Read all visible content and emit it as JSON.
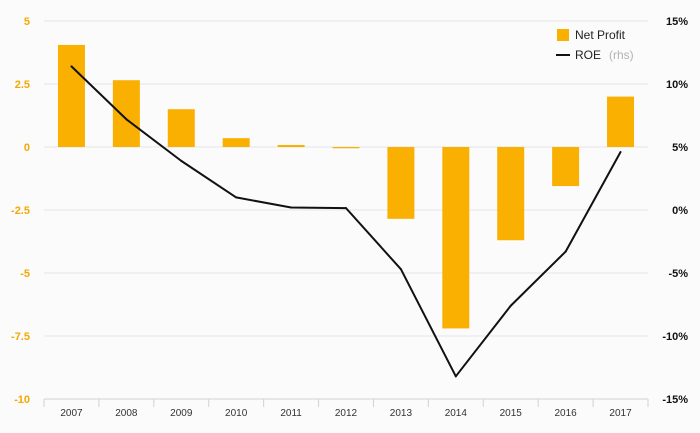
{
  "chart_data": {
    "type": "bar+line",
    "categories": [
      "2007",
      "2008",
      "2009",
      "2010",
      "2011",
      "2012",
      "2013",
      "2014",
      "2015",
      "2016",
      "2017"
    ],
    "series": [
      {
        "name": "Net Profit",
        "type": "bar",
        "axis": "left",
        "color": "#f9b000",
        "values": [
          4.05,
          2.65,
          1.5,
          0.35,
          0.08,
          -0.05,
          -2.85,
          -7.2,
          -3.7,
          -1.55,
          2.0
        ]
      },
      {
        "name": "ROE",
        "name_note": "(rhs)",
        "type": "line",
        "axis": "right",
        "color": "#111111",
        "values": [
          11.4,
          7.2,
          3.9,
          1.0,
          0.2,
          0.15,
          -4.7,
          -13.2,
          -7.6,
          -3.3,
          4.6
        ]
      }
    ],
    "left_axis": {
      "ylim": [
        -10,
        5
      ],
      "ticks": [
        5,
        2.5,
        0,
        -2.5,
        -5,
        -7.5,
        -10
      ],
      "tick_labels": [
        "5",
        "2.5",
        "0",
        "-2.5",
        "-5",
        "-7.5",
        "-10"
      ],
      "color": "#f5a800"
    },
    "right_axis": {
      "ylim": [
        -15,
        15
      ],
      "ticks": [
        15,
        10,
        5,
        0,
        -5,
        -10,
        -15
      ],
      "tick_labels": [
        "15%",
        "10%",
        "5%",
        "0%",
        "-5%",
        "-10%",
        "-15%"
      ],
      "color": "#111111"
    },
    "grid": true,
    "legend_position": "top-right"
  }
}
